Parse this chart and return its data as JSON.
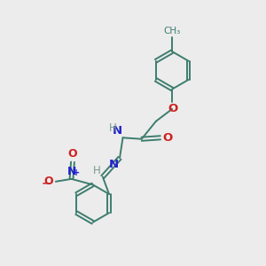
{
  "bg_color": "#ececec",
  "bond_color": "#3d7d6e",
  "N_color": "#2222cc",
  "O_color": "#cc2222",
  "H_color": "#7a9a8a",
  "figsize": [
    3.0,
    3.0
  ],
  "dpi": 100,
  "xlim": [
    0,
    10
  ],
  "ylim": [
    0,
    10
  ]
}
